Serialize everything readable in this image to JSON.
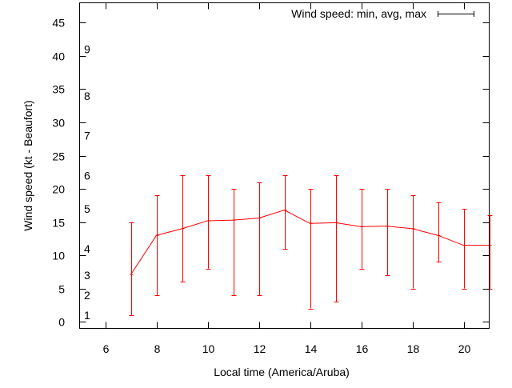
{
  "chart_data": {
    "type": "line",
    "title": "",
    "xlabel": "Local time (America/Aruba)",
    "ylabel": "Wind speed (kt - Beaufort)",
    "xlim": [
      5,
      21
    ],
    "ylim": [
      -1,
      48
    ],
    "xticks": [
      6,
      8,
      10,
      12,
      14,
      16,
      18,
      20
    ],
    "yticks": [
      0,
      5,
      10,
      15,
      20,
      25,
      30,
      35,
      40,
      45
    ],
    "grid": false,
    "legend": {
      "placement": "top-right",
      "entries": [
        "Wind speed: min, avg, max"
      ]
    },
    "beaufort_labels": [
      {
        "label": "1",
        "kt": 1
      },
      {
        "label": "2",
        "kt": 4
      },
      {
        "label": "3",
        "kt": 7
      },
      {
        "label": "4",
        "kt": 11
      },
      {
        "label": "5",
        "kt": 17
      },
      {
        "label": "6",
        "kt": 22
      },
      {
        "label": "7",
        "kt": 28
      },
      {
        "label": "8",
        "kt": 34
      },
      {
        "label": "9",
        "kt": 41
      }
    ],
    "series": [
      {
        "name": "Wind speed: min, avg, max",
        "color": "#ff0000",
        "x": [
          7,
          8,
          9,
          10,
          11,
          12,
          13,
          14,
          15,
          16,
          17,
          18,
          19,
          20,
          21
        ],
        "avg": [
          7.1,
          13,
          14,
          15.2,
          15.3,
          15.6,
          16.8,
          14.8,
          14.9,
          14.3,
          14.4,
          14,
          13,
          11.5,
          11.5
        ],
        "min": [
          1,
          4,
          6,
          8,
          4,
          4,
          11,
          2,
          3,
          8,
          7,
          5,
          9,
          5,
          5
        ],
        "max": [
          15,
          19,
          22,
          22,
          20,
          21,
          22,
          20,
          22,
          20,
          20,
          19,
          18,
          17,
          16
        ]
      }
    ]
  }
}
